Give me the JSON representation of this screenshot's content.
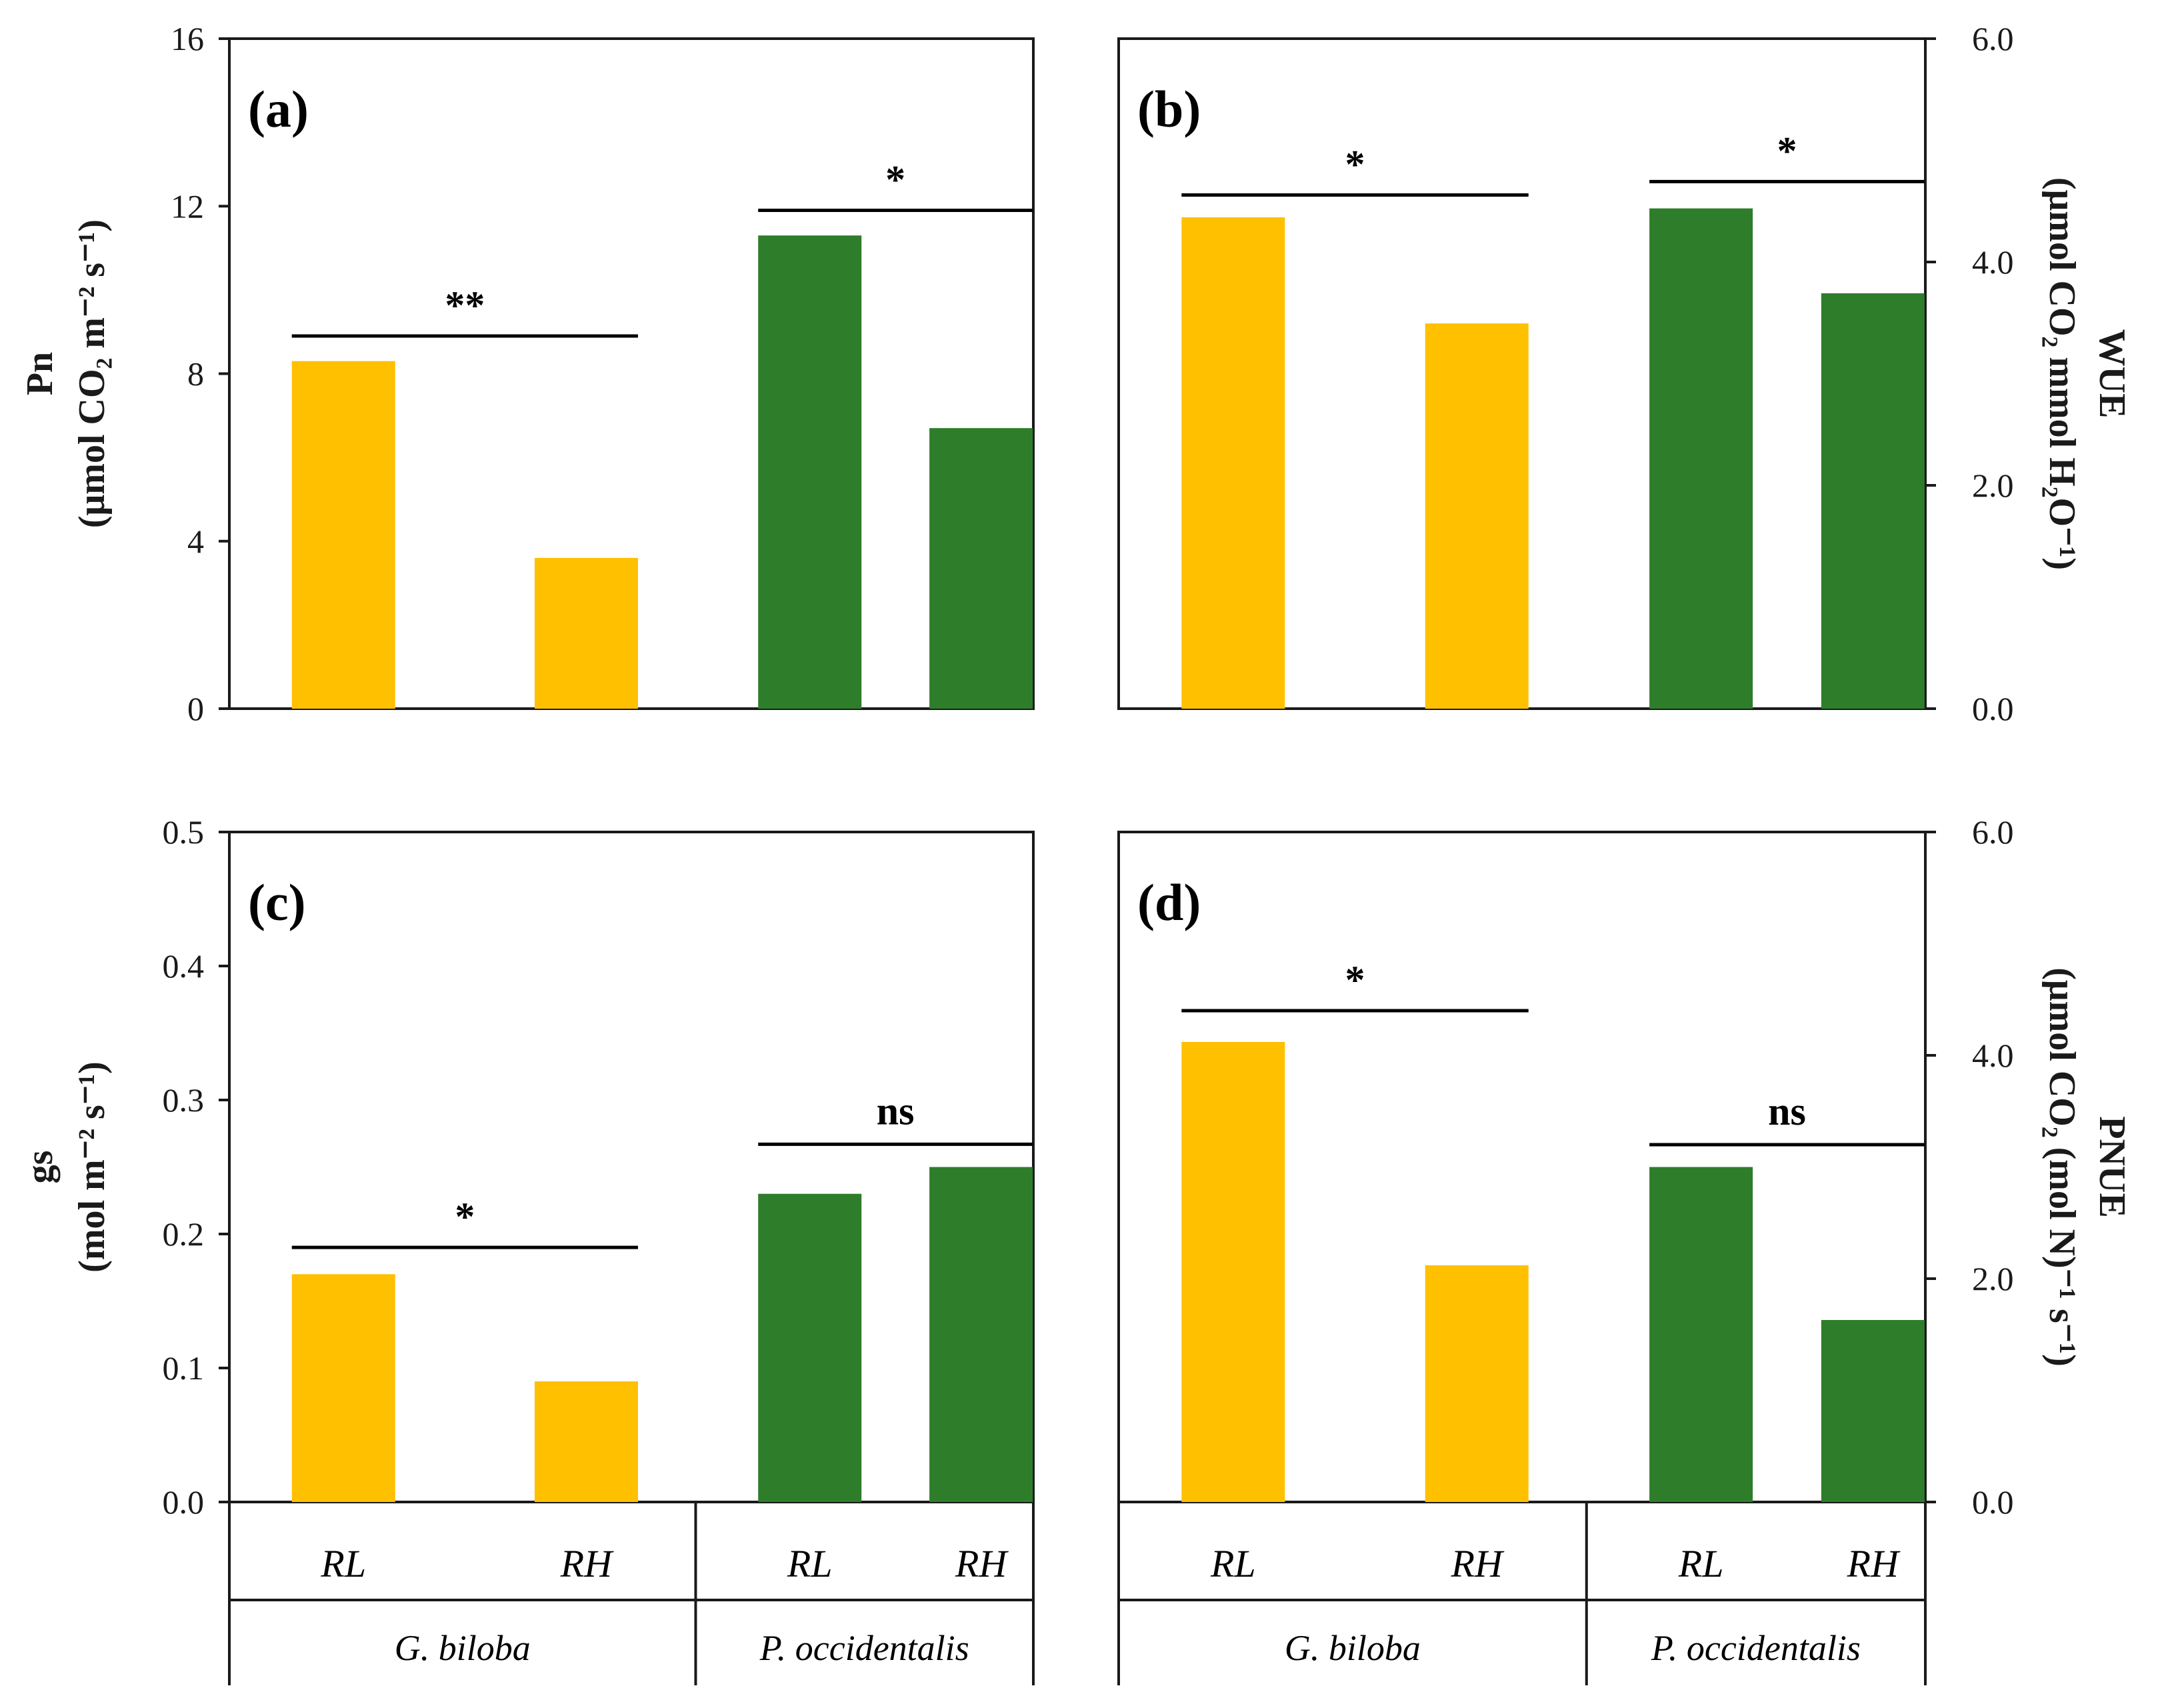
{
  "colors": {
    "G. biloba": "#FFC000",
    "P. occidentalis": "#2E7D2A"
  },
  "x_axis": {
    "groups": [
      {
        "species": "G. biloba",
        "categories": [
          "RL",
          "RH"
        ]
      },
      {
        "species": "P. occidentalis",
        "categories": [
          "RL",
          "RH"
        ]
      }
    ]
  },
  "chart_data": [
    {
      "type": "bar",
      "panel": "(a)",
      "ylabel_line1": "Pn",
      "ylabel_line2": "(μmol CO₂ m⁻² s⁻¹)",
      "ylim": [
        0,
        16
      ],
      "yticks": [
        "0",
        "4",
        "8",
        "12",
        "16"
      ],
      "axis_side": "left",
      "categories": [
        "RL",
        "RH",
        "RL",
        "RH"
      ],
      "values": [
        8.3,
        3.6,
        11.3,
        6.7
      ],
      "significance": [
        {
          "label": "**",
          "group": 0,
          "y": 8.9
        },
        {
          "label": "*",
          "group": 1,
          "y": 11.9
        }
      ]
    },
    {
      "type": "bar",
      "panel": "(b)",
      "ylabel_line1": "WUE",
      "ylabel_line2": "(μmol CO₂ mmol H₂O⁻¹)",
      "ylim": [
        0,
        6
      ],
      "yticks": [
        "0.0",
        "2.0",
        "4.0",
        "6.0"
      ],
      "axis_side": "right",
      "categories": [
        "RL",
        "RH",
        "RL",
        "RH"
      ],
      "values": [
        4.4,
        3.45,
        4.48,
        3.72
      ],
      "significance": [
        {
          "label": "*",
          "group": 0,
          "y": 4.6
        },
        {
          "label": "*",
          "group": 1,
          "y": 4.72
        }
      ]
    },
    {
      "type": "bar",
      "panel": "(c)",
      "ylabel_line1": "gs",
      "ylabel_line2": "(mol m⁻² s⁻¹)",
      "ylim": [
        0,
        0.5
      ],
      "yticks": [
        "0.0",
        "0.1",
        "0.2",
        "0.3",
        "0.4",
        "0.5"
      ],
      "axis_side": "left",
      "categories": [
        "RL",
        "RH",
        "RL",
        "RH"
      ],
      "values": [
        0.17,
        0.09,
        0.23,
        0.25
      ],
      "significance": [
        {
          "label": "*",
          "group": 0,
          "y": 0.19
        },
        {
          "label": "ns",
          "group": 1,
          "y": 0.267
        }
      ]
    },
    {
      "type": "bar",
      "panel": "(d)",
      "ylabel_line1": "PNUE",
      "ylabel_line2": "(μmol CO₂ (mol N)⁻¹ s⁻¹)",
      "ylim": [
        0,
        6
      ],
      "yticks": [
        "0.0",
        "2.0",
        "4.0",
        "6.0"
      ],
      "axis_side": "right",
      "categories": [
        "RL",
        "RH",
        "RL",
        "RH"
      ],
      "values": [
        4.12,
        2.12,
        3.0,
        1.63
      ],
      "significance": [
        {
          "label": "*",
          "group": 0,
          "y": 4.4
        },
        {
          "label": "ns",
          "group": 1,
          "y": 3.2
        }
      ]
    }
  ]
}
